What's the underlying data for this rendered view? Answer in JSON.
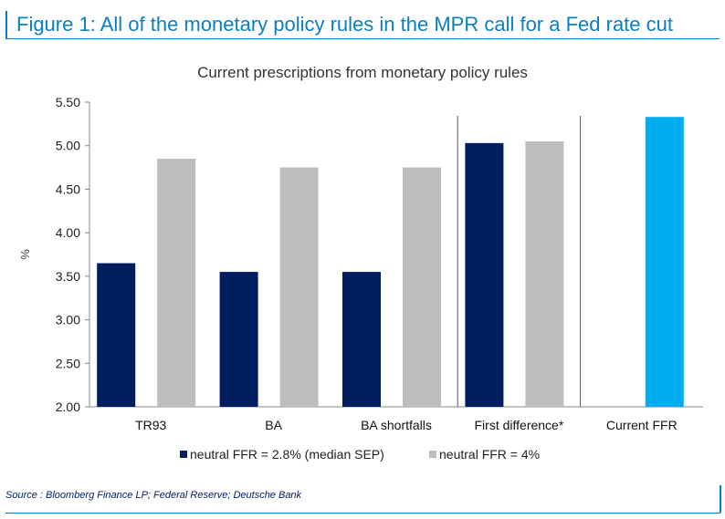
{
  "figure_title": "Figure 1: All of the monetary policy rules in the MPR call for a Fed rate cut",
  "source": "Source : Bloomberg Finance LP; Federal Reserve; Deutsche Bank",
  "colors": {
    "accent": "#0a7fc2",
    "navy": "#001e5f",
    "gray": "#bdbdbd",
    "cyan": "#00adef"
  },
  "chart_data": {
    "type": "bar",
    "title": "Current prescriptions from monetary policy rules",
    "ylabel": "%",
    "ylim": [
      2.0,
      5.5
    ],
    "yticks": [
      "2.00",
      "2.50",
      "3.00",
      "3.50",
      "4.00",
      "4.50",
      "5.00",
      "5.50"
    ],
    "categories": [
      "TR93",
      "BA",
      "BA shortfalls",
      "First difference*",
      "Current FFR"
    ],
    "series": [
      {
        "name": "neutral FFR = 2.8% (median SEP)",
        "color": "#001e5f",
        "values": [
          3.65,
          3.55,
          3.55,
          5.03,
          null
        ]
      },
      {
        "name": "neutral FFR = 4%",
        "color": "#bdbdbd",
        "values": [
          4.85,
          4.75,
          4.75,
          5.05,
          null
        ]
      },
      {
        "name": "",
        "color": "#00adef",
        "values": [
          null,
          null,
          null,
          null,
          5.33
        ]
      }
    ],
    "separators_after": [
      "BA shortfalls",
      "First difference*"
    ],
    "grid": false,
    "legend_position": "bottom"
  }
}
